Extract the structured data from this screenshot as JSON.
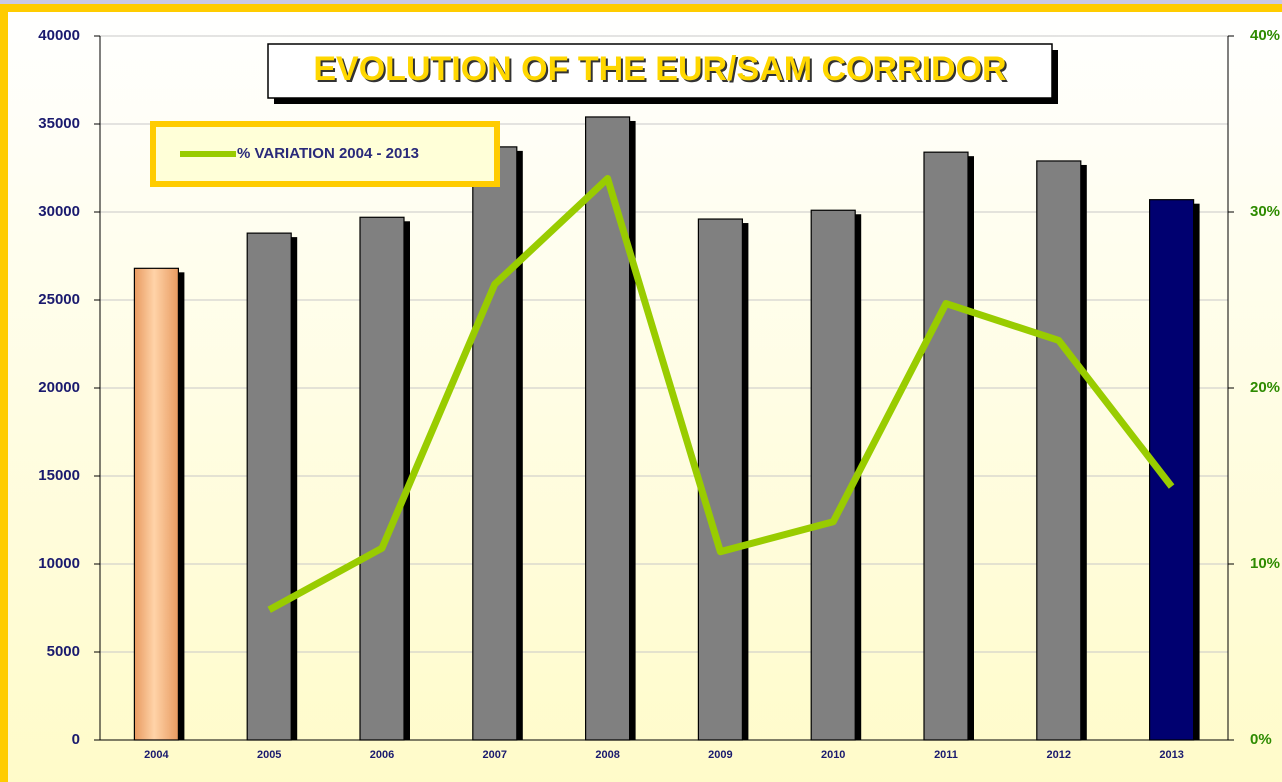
{
  "chart_data": {
    "type": "bar_line",
    "title": "EVOLUTION OF THE EUR/SAM CORRIDOR",
    "categories": [
      "2004",
      "2005",
      "2006",
      "2007",
      "2008",
      "2009",
      "2010",
      "2011",
      "2012",
      "2013"
    ],
    "series": [
      {
        "type": "bar",
        "colors": [
          "#f4b07a",
          "#808080",
          "#808080",
          "#808080",
          "#808080",
          "#808080",
          "#808080",
          "#808080",
          "#808080",
          "#000070"
        ],
        "values": [
          26800,
          28800,
          29700,
          33700,
          35400,
          29600,
          30100,
          33400,
          32900,
          30700
        ]
      },
      {
        "type": "line",
        "name": "% VARIATION 2004 - 2013",
        "color": "#99cc00",
        "axis": "y2",
        "values": [
          null,
          7.4,
          10.9,
          25.9,
          31.9,
          10.7,
          12.4,
          24.8,
          22.7,
          14.4
        ]
      }
    ],
    "ylim": [
      0,
      40000
    ],
    "yticks": [
      0,
      5000,
      10000,
      15000,
      20000,
      25000,
      30000,
      35000,
      40000
    ],
    "y2lim": [
      0,
      40
    ],
    "y2ticks": [
      {
        "value": 0,
        "label": "0%"
      },
      {
        "value": 10,
        "label": "10%"
      },
      {
        "value": 20,
        "label": "20%"
      },
      {
        "value": 30,
        "label": "30%"
      },
      {
        "value": 40,
        "label": "40%"
      }
    ],
    "grid": true,
    "legend": "top-left"
  }
}
